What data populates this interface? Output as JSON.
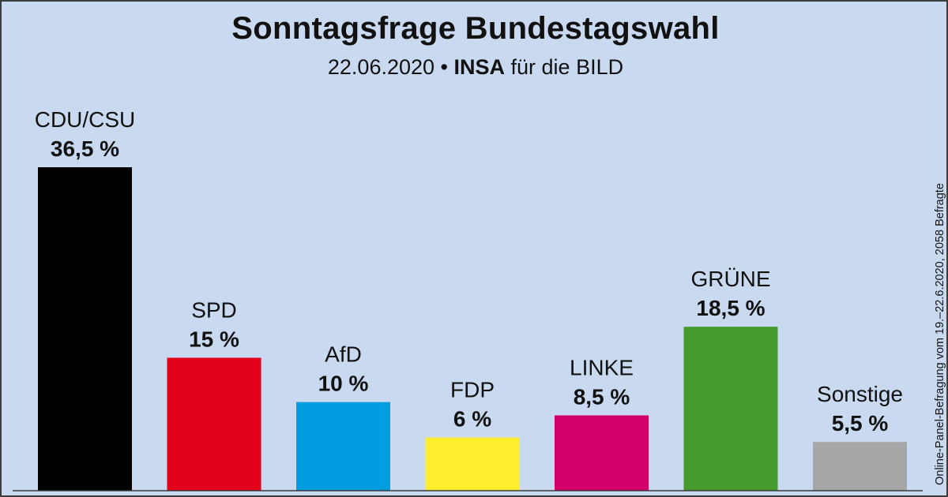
{
  "header": {
    "title": "Sonntagsfrage Bundestagswahl",
    "subtitle_date": "22.06.2020 •",
    "subtitle_institute": "INSA",
    "subtitle_client": "für die BILD"
  },
  "side_note": "Online-Panel-Befragung vom 19.–22.6.2020, 2058 Befragte",
  "chart_data": {
    "type": "bar",
    "title": "Sonntagsfrage Bundestagswahl",
    "categories": [
      "CDU/CSU",
      "SPD",
      "AfD",
      "FDP",
      "LINKE",
      "GRÜNE",
      "Sonstige"
    ],
    "values": [
      36.5,
      15,
      10,
      6,
      8.5,
      18.5,
      5.5
    ],
    "value_labels": [
      "36,5 %",
      "15 %",
      "10 %",
      "6 %",
      "8,5 %",
      "18,5 %",
      "5,5 %"
    ],
    "colors": [
      "#000000",
      "#e2001a",
      "#009ee0",
      "#ffed30",
      "#d4006a",
      "#469a2e",
      "#a6a6a6"
    ],
    "ylim": [
      0,
      36.5
    ],
    "grid": false,
    "legend": "none",
    "xlabel": "",
    "ylabel": ""
  }
}
